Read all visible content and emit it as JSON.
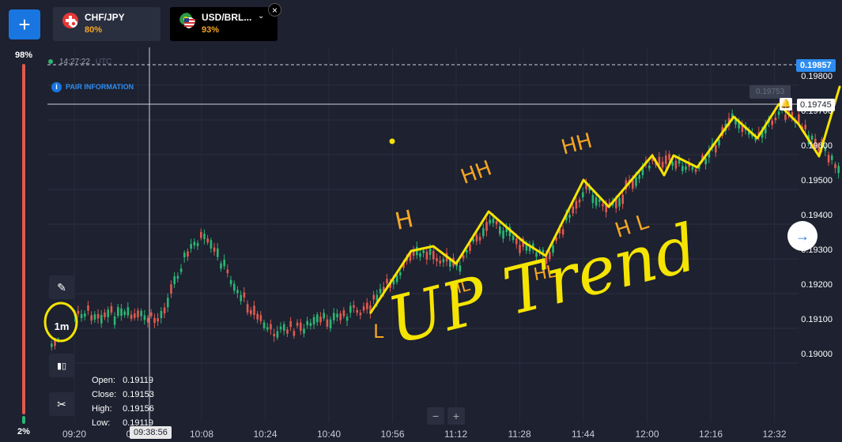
{
  "toolbar": {
    "add_label": "+"
  },
  "tabs": [
    {
      "name": "CHF/JPY",
      "payout": "80%"
    },
    {
      "name": "USD/BRL...",
      "payout": "93%"
    }
  ],
  "sentiment": {
    "high": "98%",
    "low": "2%",
    "up_fraction": 0.98
  },
  "tools": {
    "timeframe": "1m"
  },
  "ohlc": {
    "open_label": "Open:",
    "open": "0.19119",
    "close_label": "Close:",
    "close": "0.19153",
    "high_label": "High:",
    "high": "0.19156",
    "low_label": "Low:",
    "low": "0.19119"
  },
  "chart": {
    "time_label": "14:27:22",
    "time_zone": "UTC",
    "pair_info": "PAIR INFORMATION",
    "current_price": "0.19857",
    "hover_price": "0.19745",
    "ghost_price": "0.19753",
    "cursor_time": "09:38:56",
    "price_ticks": [
      "0.19800",
      "0.19700",
      "0.19600",
      "0.19500",
      "0.19400",
      "0.19300",
      "0.19200",
      "0.19100",
      "0.19000"
    ],
    "time_ticks": [
      "09:20",
      "09:52",
      "10:08",
      "10:24",
      "10:40",
      "10:56",
      "11:12",
      "11:28",
      "11:44",
      "12:00",
      "12:16",
      "12:32"
    ]
  },
  "zoom": {
    "minus": "−",
    "plus": "+"
  },
  "annotations": {
    "H": "H",
    "HH1": "HH",
    "HH2": "HH",
    "HL1": "HL",
    "HL2": "HL",
    "HL3": "H L",
    "L": "L",
    "trend": "UP Trend"
  },
  "colors": {
    "accent": "#1976e0",
    "up": "#2bb673",
    "down": "#e05a4f",
    "annotation": "#f5e400",
    "payout": "#f5a623"
  }
}
